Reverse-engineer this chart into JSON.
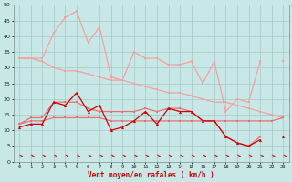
{
  "x": [
    0,
    1,
    2,
    3,
    4,
    5,
    6,
    7,
    8,
    9,
    10,
    11,
    12,
    13,
    14,
    15,
    16,
    17,
    18,
    19,
    20,
    21,
    22,
    23
  ],
  "line_rafales_top": [
    33,
    33,
    33,
    41,
    46,
    48,
    38,
    43,
    27,
    26,
    35,
    33,
    33,
    31,
    31,
    32,
    25,
    32,
    16,
    20,
    19,
    32,
    null,
    32
  ],
  "line_mean_top": [
    33,
    33,
    32,
    30,
    29,
    29,
    28,
    27,
    26,
    26,
    25,
    24,
    23,
    22,
    22,
    21,
    20,
    19,
    19,
    18,
    17,
    16,
    15,
    14
  ],
  "line_rafales_mid": [
    12,
    14,
    14,
    19,
    19,
    19,
    17,
    16,
    16,
    16,
    16,
    17,
    16,
    17,
    17,
    16,
    13,
    13,
    8,
    6,
    5,
    8,
    null,
    14
  ],
  "line_mean_mid": [
    12,
    13,
    13,
    14,
    14,
    14,
    14,
    14,
    13,
    13,
    13,
    13,
    13,
    13,
    13,
    13,
    13,
    13,
    13,
    13,
    13,
    13,
    13,
    14
  ],
  "line_wind_dark": [
    11,
    12,
    12,
    19,
    18,
    22,
    16,
    18,
    10,
    11,
    13,
    16,
    12,
    17,
    16,
    16,
    13,
    13,
    8,
    6,
    5,
    7,
    null,
    8
  ],
  "color_light_salmon": "#f5a0a0",
  "color_salmon": "#e87070",
  "color_red": "#cc0000",
  "color_dark_red": "#990000",
  "bg_color": "#c8e8e8",
  "grid_color": "#a8c8c8",
  "xlabel": "Vent moyen/en rafales ( km/h )",
  "xlabel_color": "#cc0000",
  "arrow_color": "#cc2222",
  "ylim": [
    0,
    50
  ],
  "yticks": [
    0,
    5,
    10,
    15,
    20,
    25,
    30,
    35,
    40,
    45,
    50
  ],
  "xlim": [
    -0.5,
    23.5
  ]
}
